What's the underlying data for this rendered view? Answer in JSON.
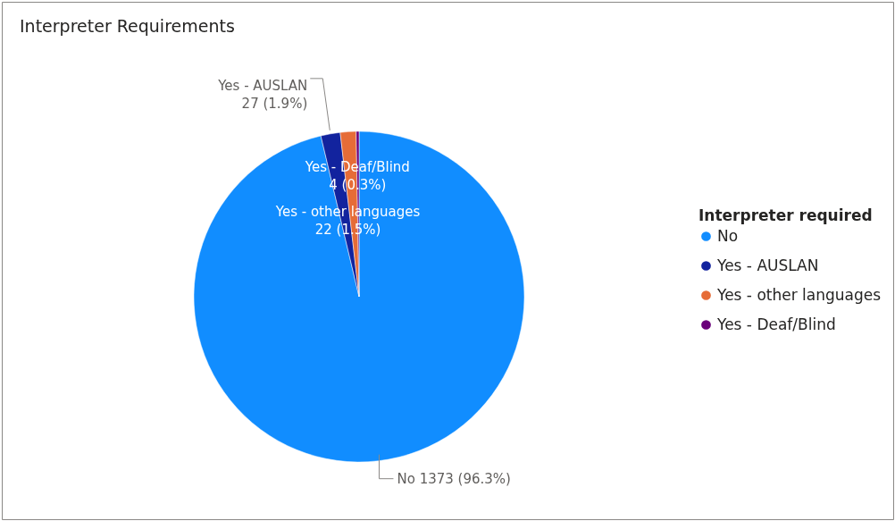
{
  "chart_data": {
    "type": "pie",
    "title": "Interpreter Requirements",
    "legend_title": "Interpreter required",
    "legend": "right",
    "categories": [
      "No",
      "Yes - AUSLAN",
      "Yes - other languages",
      "Yes - Deaf/Blind"
    ],
    "values": [
      1373,
      27,
      22,
      4
    ],
    "colors": [
      "#118dff",
      "#12239e",
      "#e66c37",
      "#6b007b"
    ],
    "value_labels": [
      "1373 (96.3%)",
      "27 (1.9%)",
      "22 (1.5%)",
      "4 (0.3%)"
    ]
  }
}
